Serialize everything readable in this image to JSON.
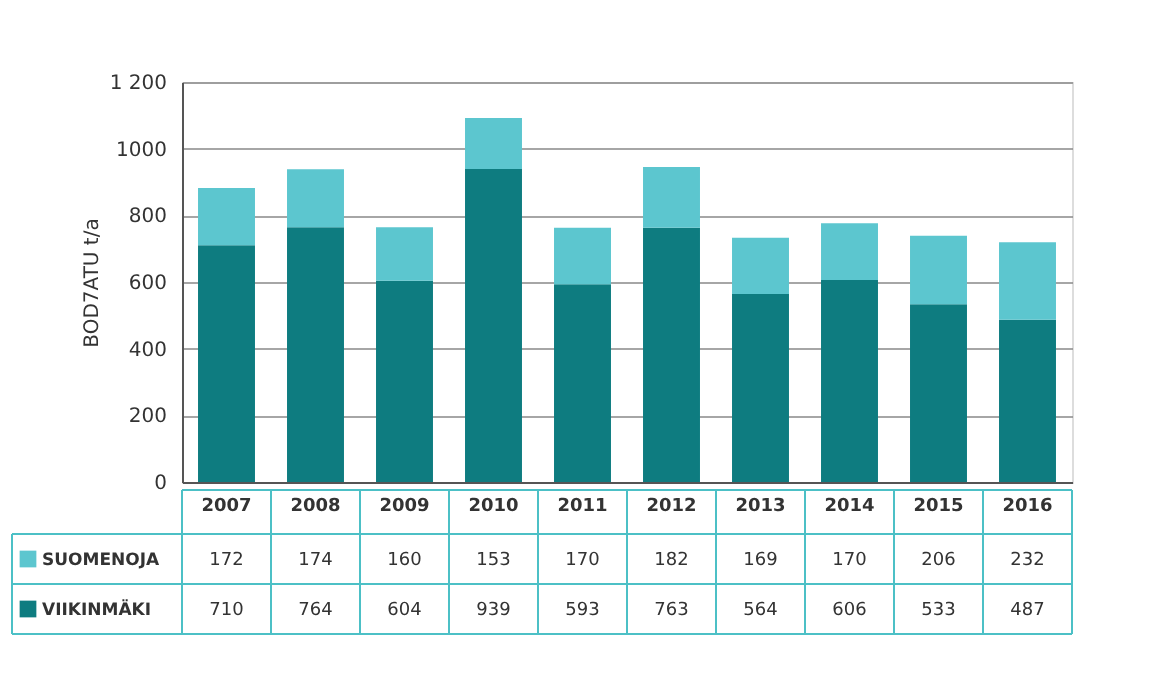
{
  "chart_data": {
    "type": "bar",
    "stacked": true,
    "ylabel": "BOD7ATU t/a",
    "categories": [
      "2007",
      "2008",
      "2009",
      "2010",
      "2011",
      "2012",
      "2013",
      "2014",
      "2015",
      "2016"
    ],
    "series": [
      {
        "name": "VIIKINMÄKI",
        "color": "#0e7c80",
        "values": [
          710,
          764,
          604,
          939,
          593,
          763,
          564,
          606,
          533,
          487
        ]
      },
      {
        "name": "SUOMENOJA",
        "color": "#5cc6cf",
        "values": [
          172,
          174,
          160,
          153,
          170,
          182,
          169,
          170,
          206,
          232
        ]
      }
    ],
    "ylim": [
      0,
      1200
    ],
    "yticks": [
      0,
      200,
      400,
      600,
      800,
      1000,
      {
        "value": 1200,
        "label": "1 200"
      }
    ],
    "grid": "y",
    "legend": "bottom",
    "data_labels": true
  }
}
